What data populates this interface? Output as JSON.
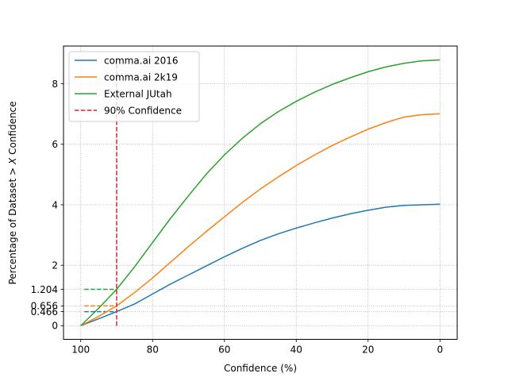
{
  "chart_data": {
    "type": "line",
    "title": "",
    "xlabel": "Confidence (%)",
    "ylabel": "Percentage of Dataset > X Confidence",
    "ylabel_parts": [
      "Percentage of Dataset ",
      ">",
      "X",
      " Confidence"
    ],
    "xlim": [
      104.8,
      -4.8
    ],
    "ylim": [
      -0.45,
      9.25
    ],
    "x_inverted": true,
    "x_ticks": [
      100,
      80,
      60,
      40,
      20,
      0
    ],
    "x_tick_labels": [
      "100",
      "80",
      "60",
      "40",
      "20",
      "0"
    ],
    "y_ticks": [
      0,
      0.466,
      0.656,
      1.204,
      2,
      4,
      6,
      8
    ],
    "y_tick_labels": [
      "0",
      "0.466",
      "0.656",
      "1.204",
      "2",
      "4",
      "6",
      "8"
    ],
    "grid": true,
    "legend": "upper left",
    "series": [
      {
        "name": "comma.ai 2016",
        "color": "#1f77b4",
        "x": [
          100,
          95,
          90,
          85,
          80,
          75,
          70,
          65,
          60,
          55,
          50,
          45,
          40,
          35,
          30,
          25,
          20,
          15,
          10,
          5,
          0
        ],
        "y": [
          0,
          0.23,
          0.466,
          0.72,
          1.05,
          1.38,
          1.68,
          1.98,
          2.28,
          2.56,
          2.82,
          3.04,
          3.23,
          3.4,
          3.56,
          3.7,
          3.82,
          3.92,
          3.98,
          4.0,
          4.02
        ]
      },
      {
        "name": "comma.ai 2k19",
        "color": "#ff7f0e",
        "x": [
          100,
          95,
          90,
          85,
          80,
          75,
          70,
          65,
          60,
          55,
          50,
          45,
          40,
          35,
          30,
          25,
          20,
          15,
          10,
          5,
          0
        ],
        "y": [
          0,
          0.31,
          0.656,
          1.1,
          1.58,
          2.1,
          2.62,
          3.12,
          3.6,
          4.08,
          4.52,
          4.92,
          5.3,
          5.64,
          5.96,
          6.24,
          6.5,
          6.72,
          6.9,
          6.98,
          7.01
        ]
      },
      {
        "name": "External JUtah",
        "color": "#2ca02c",
        "x": [
          100,
          95,
          90,
          85,
          80,
          75,
          70,
          65,
          60,
          55,
          50,
          45,
          40,
          35,
          30,
          25,
          20,
          15,
          10,
          5,
          0
        ],
        "y": [
          0,
          0.58,
          1.204,
          1.95,
          2.75,
          3.55,
          4.3,
          5.02,
          5.65,
          6.2,
          6.68,
          7.08,
          7.42,
          7.72,
          7.98,
          8.2,
          8.4,
          8.56,
          8.68,
          8.76,
          8.79
        ]
      }
    ],
    "vertical_line": {
      "name": "90% Confidence",
      "x": 90,
      "y_range": [
        0,
        8.8
      ],
      "color": "#d62728",
      "style": "dashed"
    },
    "threshold_lines": [
      {
        "series": "comma.ai 2016",
        "y": 0.466,
        "x_range": [
          99,
          90
        ],
        "color": "#1f77b4"
      },
      {
        "series": "comma.ai 2k19",
        "y": 0.656,
        "x_range": [
          99,
          90
        ],
        "color": "#ff7f0e"
      },
      {
        "series": "External JUtah",
        "y": 1.204,
        "x_range": [
          99,
          90
        ],
        "color": "#2ca02c"
      }
    ]
  }
}
